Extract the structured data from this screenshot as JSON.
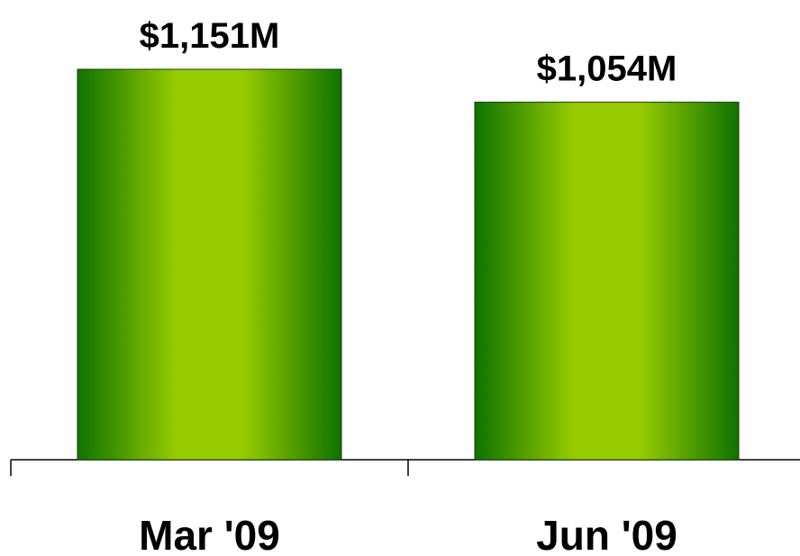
{
  "chart_data": {
    "type": "bar",
    "categories": [
      "Mar '09",
      "Jun '09"
    ],
    "values": [
      1151,
      1054
    ],
    "value_labels": [
      "$1,151M",
      "$1,054M"
    ],
    "color": "#99cc00"
  }
}
